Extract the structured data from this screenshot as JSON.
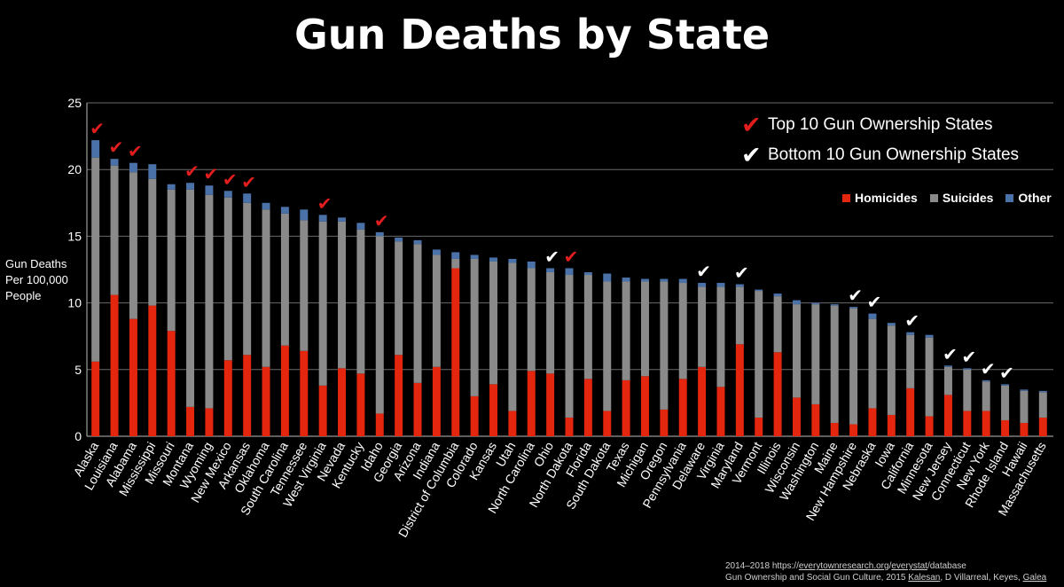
{
  "page": {
    "title": "Gun Deaths by State",
    "y_axis_label_lines": [
      "Gun Deaths",
      "Per 100,000",
      "People"
    ],
    "legend_top": [
      {
        "mark": "✔",
        "color": "#e21d1d",
        "label": "Top 10 Gun Ownership States"
      },
      {
        "mark": "✔",
        "color": "#ffffff",
        "label": "Bottom 10 Gun Ownership States"
      }
    ],
    "source": {
      "line1_prefix": "2014–2018 https://",
      "line1_link1": "everytownresearch.org",
      "line1_sep": "/",
      "line1_link2": "everystat",
      "line1_suffix": "/database",
      "line2_prefix": "Gun Ownership and Social Gun Culture, 2015 ",
      "line2_link1": "Kalesan",
      "line2_mid": ", D Villarreal, Keyes, ",
      "line2_link2": "Galea"
    }
  },
  "chart_data": {
    "type": "bar",
    "stacked": true,
    "title": "Gun Deaths by State",
    "xlabel": "",
    "ylabel": "Gun Deaths Per 100,000 People",
    "ylim": [
      0,
      25
    ],
    "yticks": [
      0,
      5,
      10,
      15,
      20,
      25
    ],
    "grid": true,
    "legend_position": "right",
    "colors": {
      "Homicides": "#e3260d",
      "Suicides": "#8a8a8a",
      "Other": "#4a72a8",
      "top_check": "#e21d1d",
      "bottom_check": "#ffffff"
    },
    "categories": [
      "Alaska",
      "Louisiana",
      "Alabama",
      "Mississippi",
      "Missouri",
      "Montana",
      "Wyoming",
      "New Mexico",
      "Arkansas",
      "Oklahoma",
      "South Carolina",
      "Tennessee",
      "West Virginia",
      "Nevada",
      "Kentucky",
      "Idaho",
      "Georgia",
      "Arizona",
      "Indiana",
      "District of Columbia",
      "Colorado",
      "Kansas",
      "Utah",
      "North Carolina",
      "Ohio",
      "North Dakota",
      "Florida",
      "South Dakota",
      "Texas",
      "Michigan",
      "Oregon",
      "Pennsylvania",
      "Delaware",
      "Virginia",
      "Maryland",
      "Vermont",
      "Illinois",
      "Wisconsin",
      "Washington",
      "Maine",
      "New Hampshire",
      "Nebraska",
      "Iowa",
      "California",
      "Minnesota",
      "New Jersey",
      "Connecticut",
      "New York",
      "Rhode Island",
      "Hawaii",
      "Massachusetts"
    ],
    "series": [
      {
        "name": "Homicides",
        "values": [
          5.6,
          10.6,
          8.8,
          9.8,
          7.9,
          2.2,
          2.1,
          5.7,
          6.1,
          5.2,
          6.8,
          6.4,
          3.8,
          5.1,
          4.7,
          1.7,
          6.1,
          4.0,
          5.2,
          12.6,
          3.0,
          3.9,
          1.9,
          4.9,
          4.7,
          1.4,
          4.3,
          1.9,
          4.2,
          4.5,
          2.0,
          4.3,
          5.2,
          3.7,
          6.9,
          1.4,
          6.3,
          2.9,
          2.4,
          1.0,
          0.9,
          2.1,
          1.6,
          3.6,
          1.5,
          3.1,
          1.9,
          1.9,
          1.2,
          1.0,
          1.4
        ]
      },
      {
        "name": "Suicides",
        "values": [
          15.3,
          9.7,
          11.0,
          9.5,
          10.6,
          16.3,
          16.0,
          12.2,
          11.4,
          11.8,
          9.9,
          9.8,
          12.3,
          11.0,
          10.8,
          13.3,
          8.5,
          10.4,
          8.4,
          0.7,
          10.3,
          9.2,
          11.1,
          7.7,
          7.6,
          10.7,
          7.8,
          9.7,
          7.4,
          7.1,
          9.6,
          7.2,
          6.0,
          7.5,
          4.3,
          9.5,
          4.2,
          7.0,
          7.5,
          8.8,
          8.7,
          6.7,
          6.7,
          4.0,
          5.9,
          2.1,
          3.1,
          2.2,
          2.6,
          2.4,
          1.9
        ]
      },
      {
        "name": "Other",
        "values": [
          1.3,
          0.5,
          0.7,
          1.1,
          0.4,
          0.5,
          0.7,
          0.5,
          0.7,
          0.5,
          0.5,
          0.8,
          0.5,
          0.3,
          0.5,
          0.3,
          0.3,
          0.3,
          0.4,
          0.5,
          0.3,
          0.3,
          0.3,
          0.5,
          0.3,
          0.5,
          0.2,
          0.6,
          0.3,
          0.2,
          0.2,
          0.3,
          0.3,
          0.3,
          0.2,
          0.1,
          0.2,
          0.3,
          0.1,
          0.1,
          0.1,
          0.4,
          0.2,
          0.2,
          0.2,
          0.1,
          0.1,
          0.1,
          0.1,
          0.1,
          0.1
        ]
      }
    ],
    "top10_ownership": [
      "Alaska",
      "Louisiana",
      "Alabama",
      "Montana",
      "Wyoming",
      "New Mexico",
      "Arkansas",
      "West Virginia",
      "Idaho",
      "North Dakota"
    ],
    "bottom10_ownership": [
      "Ohio",
      "Delaware",
      "Maryland",
      "New Hampshire",
      "Nebraska",
      "California",
      "New Jersey",
      "Connecticut",
      "New York",
      "Rhode Island"
    ]
  }
}
